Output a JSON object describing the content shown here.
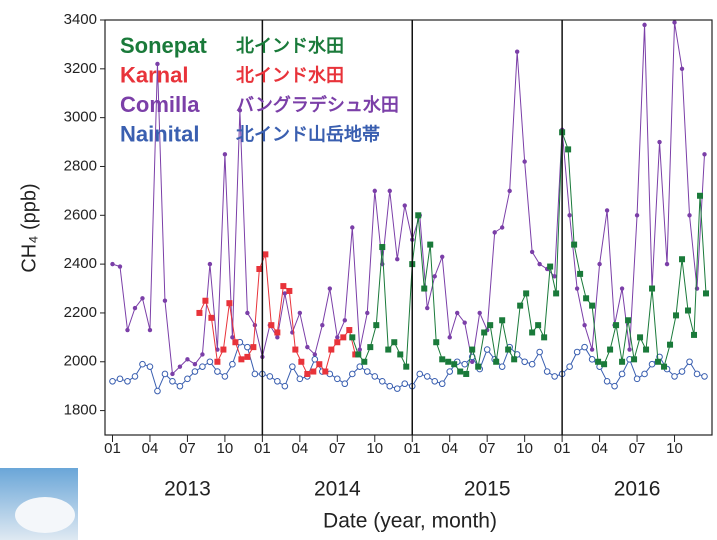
{
  "chart_data": {
    "type": "line",
    "ylabel": "CH₄ (ppb)",
    "xlabel": "Date (year, month)",
    "xlim": [
      2012.95,
      2017.0
    ],
    "ylim": [
      1700,
      3400
    ],
    "yticks": [
      1800,
      2000,
      2200,
      2400,
      2600,
      2800,
      3000,
      3200,
      3400
    ],
    "xticks": [
      {
        "value": 2013,
        "label": "01"
      },
      {
        "value": 2013.25,
        "label": "04"
      },
      {
        "value": 2013.5,
        "label": "07"
      },
      {
        "value": 2013.75,
        "label": "10"
      },
      {
        "value": 2014,
        "label": "01"
      },
      {
        "value": 2014.25,
        "label": "04"
      },
      {
        "value": 2014.5,
        "label": "07"
      },
      {
        "value": 2014.75,
        "label": "10"
      },
      {
        "value": 2015,
        "label": "01"
      },
      {
        "value": 2015.25,
        "label": "04"
      },
      {
        "value": 2015.5,
        "label": "07"
      },
      {
        "value": 2015.75,
        "label": "10"
      },
      {
        "value": 2016,
        "label": "01"
      },
      {
        "value": 2016.25,
        "label": "04"
      },
      {
        "value": 2016.5,
        "label": "07"
      },
      {
        "value": 2016.75,
        "label": "10"
      }
    ],
    "years": [
      {
        "value": 2013,
        "label": "2013"
      },
      {
        "value": 2014,
        "label": "2014"
      },
      {
        "value": 2015,
        "label": "2015"
      },
      {
        "value": 2016,
        "label": "2016"
      }
    ],
    "series": [
      {
        "name": "Comilla",
        "description": "バングラデシュ水田",
        "color": "#7b3fa8",
        "marker": "dot",
        "x": [
          2013.0,
          2013.05,
          2013.1,
          2013.15,
          2013.2,
          2013.25,
          2013.3,
          2013.35,
          2013.4,
          2013.45,
          2013.5,
          2013.55,
          2013.6,
          2013.65,
          2013.7,
          2013.75,
          2013.8,
          2013.85,
          2013.9,
          2013.95,
          2014.0,
          2014.05,
          2014.1,
          2014.15,
          2014.2,
          2014.25,
          2014.3,
          2014.35,
          2014.4,
          2014.45,
          2014.5,
          2014.55,
          2014.6,
          2014.65,
          2014.7,
          2014.75,
          2014.8,
          2014.85,
          2014.9,
          2014.95,
          2015.0,
          2015.05,
          2015.1,
          2015.15,
          2015.2,
          2015.25,
          2015.3,
          2015.35,
          2015.4,
          2015.45,
          2015.5,
          2015.55,
          2015.6,
          2015.65,
          2015.7,
          2015.75,
          2015.8,
          2015.85,
          2015.9,
          2015.95,
          2016.0,
          2016.05,
          2016.1,
          2016.15,
          2016.2,
          2016.25,
          2016.3,
          2016.35,
          2016.4,
          2016.45,
          2016.5,
          2016.55,
          2016.6,
          2016.65,
          2016.7,
          2016.75,
          2016.8,
          2016.85,
          2016.9,
          2016.95
        ],
        "values": [
          2400,
          2390,
          2130,
          2220,
          2260,
          2130,
          3220,
          2250,
          1950,
          1980,
          2010,
          1990,
          2030,
          2400,
          2050,
          2850,
          2100,
          3030,
          2200,
          2150,
          2020,
          2150,
          2100,
          2280,
          2120,
          2200,
          2060,
          2030,
          2150,
          2300,
          2100,
          2170,
          2550,
          2050,
          2200,
          2700,
          2400,
          2700,
          2420,
          2640,
          2500,
          2600,
          2220,
          2350,
          2430,
          2100,
          2200,
          2160,
          2000,
          2200,
          2130,
          2530,
          2550,
          2700,
          3270,
          2820,
          2450,
          2400,
          2380,
          2350,
          2950,
          2600,
          2300,
          2150,
          2050,
          2400,
          2620,
          2150,
          2300,
          2050,
          2600,
          3380,
          2300,
          2900,
          2400,
          3390,
          3200,
          2600,
          2300,
          2850
        ]
      },
      {
        "name": "Nainital",
        "description": "北インド山岳地帯",
        "color": "#3a5fb0",
        "marker": "circle",
        "x": [
          2013.0,
          2013.05,
          2013.1,
          2013.15,
          2013.2,
          2013.25,
          2013.3,
          2013.35,
          2013.4,
          2013.45,
          2013.5,
          2013.55,
          2013.6,
          2013.65,
          2013.7,
          2013.75,
          2013.8,
          2013.85,
          2013.9,
          2013.95,
          2014.0,
          2014.05,
          2014.1,
          2014.15,
          2014.2,
          2014.25,
          2014.3,
          2014.35,
          2014.4,
          2014.45,
          2014.5,
          2014.55,
          2014.6,
          2014.65,
          2014.7,
          2014.75,
          2014.8,
          2014.85,
          2014.9,
          2014.95,
          2015.0,
          2015.05,
          2015.1,
          2015.15,
          2015.2,
          2015.25,
          2015.3,
          2015.35,
          2015.4,
          2015.45,
          2015.5,
          2015.55,
          2015.6,
          2015.65,
          2015.7,
          2015.75,
          2015.8,
          2015.85,
          2015.9,
          2015.95,
          2016.0,
          2016.05,
          2016.1,
          2016.15,
          2016.2,
          2016.25,
          2016.3,
          2016.35,
          2016.4,
          2016.45,
          2016.5,
          2016.55,
          2016.6,
          2016.65,
          2016.7,
          2016.75,
          2016.8,
          2016.85,
          2016.9,
          2016.95
        ],
        "values": [
          1920,
          1930,
          1920,
          1940,
          1990,
          1980,
          1880,
          1950,
          1920,
          1900,
          1930,
          1960,
          1980,
          2000,
          1960,
          1940,
          1990,
          2080,
          2060,
          1950,
          1950,
          1940,
          1920,
          1900,
          1980,
          1930,
          1940,
          2010,
          1960,
          1950,
          1930,
          1910,
          1950,
          1980,
          1960,
          1940,
          1920,
          1900,
          1890,
          1910,
          1900,
          1950,
          1940,
          1920,
          1910,
          1960,
          2000,
          1990,
          2020,
          1970,
          2050,
          2010,
          1980,
          2060,
          2030,
          2000,
          1990,
          2040,
          1960,
          1940,
          1950,
          1980,
          2040,
          2060,
          2010,
          1980,
          1920,
          1900,
          1950,
          2010,
          1930,
          1950,
          1990,
          2020,
          1970,
          1940,
          1960,
          2000,
          1950,
          1940
        ]
      },
      {
        "name": "Karnal",
        "description": "北インド水田",
        "color": "#e8333a",
        "marker": "square",
        "x": [
          2013.58,
          2013.62,
          2013.66,
          2013.7,
          2013.74,
          2013.78,
          2013.82,
          2013.86,
          2013.9,
          2013.94,
          2013.98,
          2014.02,
          2014.06,
          2014.1,
          2014.14,
          2014.18,
          2014.22,
          2014.26,
          2014.3,
          2014.34,
          2014.38,
          2014.42,
          2014.46,
          2014.5,
          2014.54,
          2014.58,
          2014.62
        ],
        "values": [
          2200,
          2250,
          2180,
          2000,
          2050,
          2240,
          2080,
          2010,
          2020,
          2060,
          2380,
          2440,
          2150,
          2120,
          2310,
          2290,
          2050,
          2000,
          1950,
          1960,
          1990,
          1960,
          2050,
          2080,
          2100,
          2130,
          2030
        ]
      },
      {
        "name": "Sonepat",
        "description": "北インド水田",
        "color": "#1a7a3a",
        "marker": "square",
        "x": [
          2014.6,
          2014.64,
          2014.68,
          2014.72,
          2014.76,
          2014.8,
          2014.84,
          2014.88,
          2014.92,
          2014.96,
          2015.0,
          2015.04,
          2015.08,
          2015.12,
          2015.16,
          2015.2,
          2015.24,
          2015.28,
          2015.32,
          2015.36,
          2015.4,
          2015.44,
          2015.48,
          2015.52,
          2015.56,
          2015.6,
          2015.64,
          2015.68,
          2015.72,
          2015.76,
          2015.8,
          2015.84,
          2015.88,
          2015.92,
          2015.96,
          2016.0,
          2016.04,
          2016.08,
          2016.12,
          2016.16,
          2016.2,
          2016.24,
          2016.28,
          2016.32,
          2016.36,
          2016.4,
          2016.44,
          2016.48,
          2016.52,
          2016.56,
          2016.6,
          2016.64,
          2016.68,
          2016.72,
          2016.76,
          2016.8,
          2016.84,
          2016.88,
          2016.92,
          2016.96
        ],
        "values": [
          2100,
          2030,
          2000,
          2060,
          2150,
          2470,
          2050,
          2080,
          2030,
          1980,
          2400,
          2600,
          2300,
          2480,
          2080,
          2010,
          2000,
          1990,
          1960,
          1950,
          2050,
          1980,
          2120,
          2150,
          2000,
          2170,
          2050,
          2010,
          2230,
          2280,
          2120,
          2150,
          2100,
          2390,
          2280,
          2940,
          2870,
          2480,
          2360,
          2260,
          2230,
          2000,
          1990,
          2050,
          2150,
          2000,
          2170,
          2010,
          2100,
          2050,
          2300,
          2000,
          1980,
          2070,
          2190,
          2420,
          2210,
          2110,
          2680,
          2280
        ]
      }
    ],
    "legend_order": [
      "Sonepat",
      "Karnal",
      "Comilla",
      "Nainital"
    ]
  }
}
